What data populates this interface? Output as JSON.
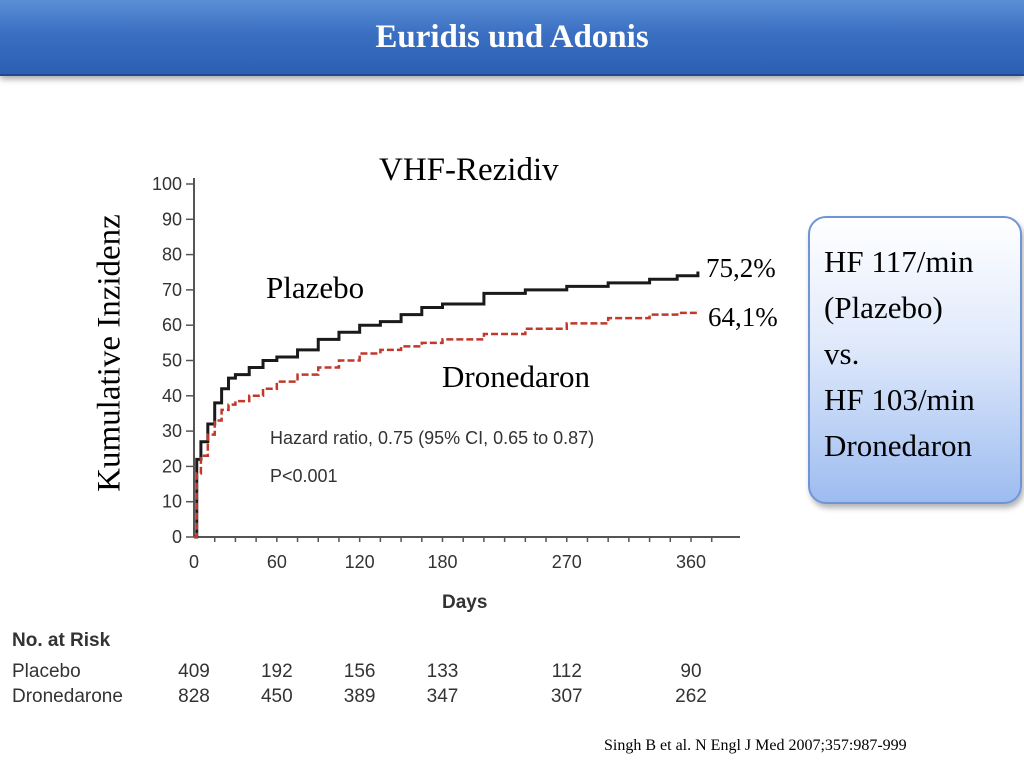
{
  "slide": {
    "title": "Euridis und Adonis",
    "citation": "Singh B et al. N Engl J Med 2007;357:987-999"
  },
  "chart_data": {
    "type": "line",
    "title": "VHF-Rezidiv",
    "xlabel": "Days",
    "ylabel": "Kumulative Inzidenz",
    "xlim": [
      0,
      365
    ],
    "ylim": [
      0,
      100
    ],
    "xticks": [
      0,
      60,
      120,
      180,
      270,
      360
    ],
    "yticks": [
      0,
      10,
      20,
      30,
      40,
      50,
      60,
      70,
      80,
      90,
      100
    ],
    "series": [
      {
        "name": "Plazebo",
        "color": "#1a1a1a",
        "x": [
          0,
          2,
          5,
          10,
          15,
          20,
          25,
          30,
          40,
          50,
          60,
          75,
          90,
          105,
          120,
          135,
          150,
          165,
          180,
          210,
          240,
          270,
          300,
          330,
          350,
          365
        ],
        "y": [
          0,
          22,
          27,
          32,
          38,
          42,
          45,
          46,
          48,
          50,
          51,
          53,
          56,
          58,
          60,
          61,
          63,
          65,
          66,
          69,
          70,
          71,
          72,
          73,
          74,
          75.2
        ]
      },
      {
        "name": "Dronedaron",
        "color": "#c0392b",
        "x": [
          0,
          2,
          5,
          10,
          15,
          20,
          25,
          30,
          40,
          50,
          60,
          75,
          90,
          105,
          120,
          135,
          150,
          165,
          180,
          210,
          240,
          270,
          300,
          330,
          350,
          365
        ],
        "y": [
          0,
          18,
          23,
          29,
          33,
          36,
          37.5,
          38.5,
          40,
          42,
          44,
          46,
          48,
          50,
          52,
          53,
          54,
          55,
          56,
          57.5,
          59,
          60.5,
          62,
          63,
          63.5,
          64.1
        ]
      }
    ],
    "annotations": {
      "placebo_label": "Plazebo",
      "dronedaron_label": "Dronedaron",
      "placebo_end": "75,2%",
      "dronedaron_end": "64,1%",
      "hazard_ratio": "Hazard ratio, 0.75 (95% CI, 0.65 to 0.87)",
      "p_value": "P<0.001"
    },
    "at_risk": {
      "header": "No. at Risk",
      "rows": [
        {
          "label": "Placebo",
          "values": [
            "409",
            "192",
            "156",
            "133",
            "112",
            "90"
          ]
        },
        {
          "label": "Dronedarone",
          "values": [
            "828",
            "450",
            "389",
            "347",
            "307",
            "262"
          ]
        }
      ]
    }
  },
  "callout": {
    "lines": [
      "HF 117/min",
      "(Plazebo)",
      "vs.",
      "HF 103/min",
      "Dronedaron"
    ]
  }
}
